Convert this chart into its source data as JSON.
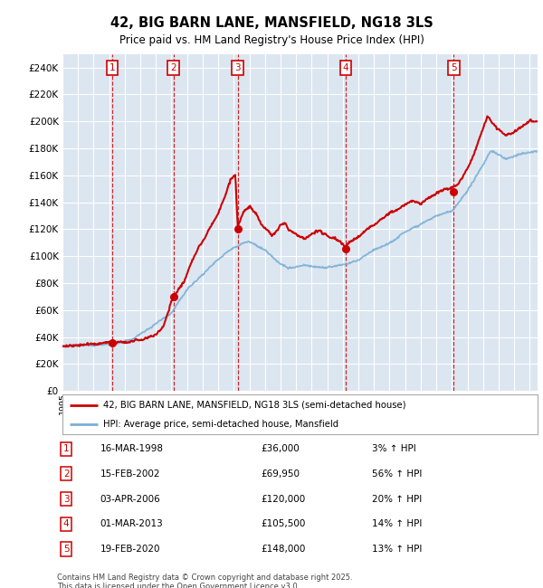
{
  "title": "42, BIG BARN LANE, MANSFIELD, NG18 3LS",
  "subtitle": "Price paid vs. HM Land Registry's House Price Index (HPI)",
  "legend_line1": "42, BIG BARN LANE, MANSFIELD, NG18 3LS (semi-detached house)",
  "legend_line2": "HPI: Average price, semi-detached house, Mansfield",
  "footer": "Contains HM Land Registry data © Crown copyright and database right 2025.\nThis data is licensed under the Open Government Licence v3.0.",
  "sale_color": "#cc0000",
  "hpi_color": "#7bafd4",
  "background_color": "#dce6f1",
  "ylim": [
    0,
    250000
  ],
  "yticks": [
    0,
    20000,
    40000,
    60000,
    80000,
    100000,
    120000,
    140000,
    160000,
    180000,
    200000,
    220000,
    240000
  ],
  "xlim_start": 1995,
  "xlim_end": 2025.5,
  "sale_events": [
    {
      "num": 1,
      "date_x": 1998.21,
      "price": 36000,
      "label": "1",
      "date_str": "16-MAR-1998",
      "price_str": "£36,000",
      "pct": "3% ↑ HPI"
    },
    {
      "num": 2,
      "date_x": 2002.12,
      "price": 69950,
      "label": "2",
      "date_str": "15-FEB-2002",
      "price_str": "£69,950",
      "pct": "56% ↑ HPI"
    },
    {
      "num": 3,
      "date_x": 2006.25,
      "price": 120000,
      "label": "3",
      "date_str": "03-APR-2006",
      "price_str": "£120,000",
      "pct": "20% ↑ HPI"
    },
    {
      "num": 4,
      "date_x": 2013.17,
      "price": 105500,
      "label": "4",
      "date_str": "01-MAR-2013",
      "price_str": "£105,500",
      "pct": "14% ↑ HPI"
    },
    {
      "num": 5,
      "date_x": 2020.12,
      "price": 148000,
      "label": "5",
      "date_str": "19-FEB-2020",
      "price_str": "£148,000",
      "pct": "13% ↑ HPI"
    }
  ]
}
